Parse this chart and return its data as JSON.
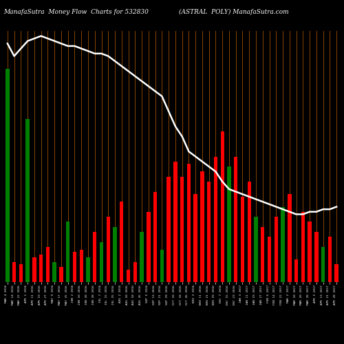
{
  "title_left": "ManafaSutra  Money Flow  Charts for 532830",
  "title_right": "(ASTRAL  POLY) ManafaSutra.com",
  "background_color": "#000000",
  "bar_grid_color": "#8B4500",
  "line_color": "#ffffff",
  "bar_colors": [
    "green",
    "red",
    "red",
    "green",
    "red",
    "red",
    "red",
    "green",
    "red",
    "green",
    "red",
    "red",
    "green",
    "red",
    "green",
    "red",
    "green",
    "red",
    "red",
    "red",
    "green",
    "red",
    "red",
    "green",
    "red",
    "red",
    "red",
    "red",
    "red",
    "red",
    "red",
    "red",
    "red",
    "green",
    "red",
    "red",
    "red",
    "green",
    "red",
    "red",
    "red",
    "green",
    "red",
    "red",
    "red",
    "red",
    "red",
    "green",
    "red",
    "red"
  ],
  "bar_heights": [
    85,
    8,
    7,
    65,
    10,
    11,
    14,
    8,
    6,
    24,
    12,
    13,
    10,
    20,
    16,
    26,
    22,
    32,
    5,
    8,
    20,
    28,
    36,
    13,
    42,
    48,
    42,
    47,
    35,
    44,
    40,
    50,
    60,
    46,
    50,
    34,
    40,
    26,
    22,
    18,
    26,
    30,
    35,
    9,
    28,
    24,
    20,
    14,
    18,
    7
  ],
  "line_values": [
    95,
    90,
    93,
    96,
    97,
    98,
    97,
    96,
    95,
    94,
    94,
    93,
    92,
    91,
    91,
    90,
    88,
    86,
    84,
    82,
    80,
    78,
    76,
    74,
    68,
    62,
    58,
    52,
    50,
    48,
    46,
    44,
    40,
    37,
    36,
    35,
    34,
    33,
    32,
    31,
    30,
    29,
    28,
    27,
    27,
    28,
    28,
    29,
    29,
    30
  ],
  "x_labels": [
    "MAR 4 2016",
    "MAR 14 2016",
    "MAR 22 2016",
    "APR 1 2016",
    "APR 11 2016",
    "APR 19 2016",
    "APR 27 2016",
    "MAY 9 2016",
    "MAY 17 2016",
    "MAY 25 2016",
    "JUN 2 2016",
    "JUN 10 2016",
    "JUN 20 2016",
    "JUN 28 2016",
    "JUL 7 2016",
    "JUL 15 2016",
    "JUL 25 2016",
    "AUG 2 2016",
    "AUG 10 2016",
    "AUG 18 2016",
    "AUG 26 2016",
    "SEP 5 2016",
    "SEP 13 2016",
    "SEP 21 2016",
    "SEP 29 2016",
    "OCT 10 2016",
    "OCT 18 2016",
    "OCT 26 2016",
    "NOV 3 2016",
    "NOV 11 2016",
    "NOV 21 2016",
    "NOV 29 2016",
    "DEC 7 2016",
    "DEC 15 2016",
    "DEC 23 2016",
    "JAN 3 2017",
    "JAN 11 2017",
    "JAN 19 2017",
    "JAN 27 2017",
    "FEB 6 2017",
    "FEB 14 2017",
    "FEB 22 2017",
    "MAR 2 2017",
    "MAR 10 2017",
    "MAR 20 2017",
    "MAR 28 2017",
    "APR 5 2017",
    "APR 13 2017",
    "APR 21 2017",
    "APR 28 2017"
  ],
  "ylim": [
    0,
    100
  ],
  "figsize": [
    5.0,
    5.0
  ],
  "dpi": 100
}
